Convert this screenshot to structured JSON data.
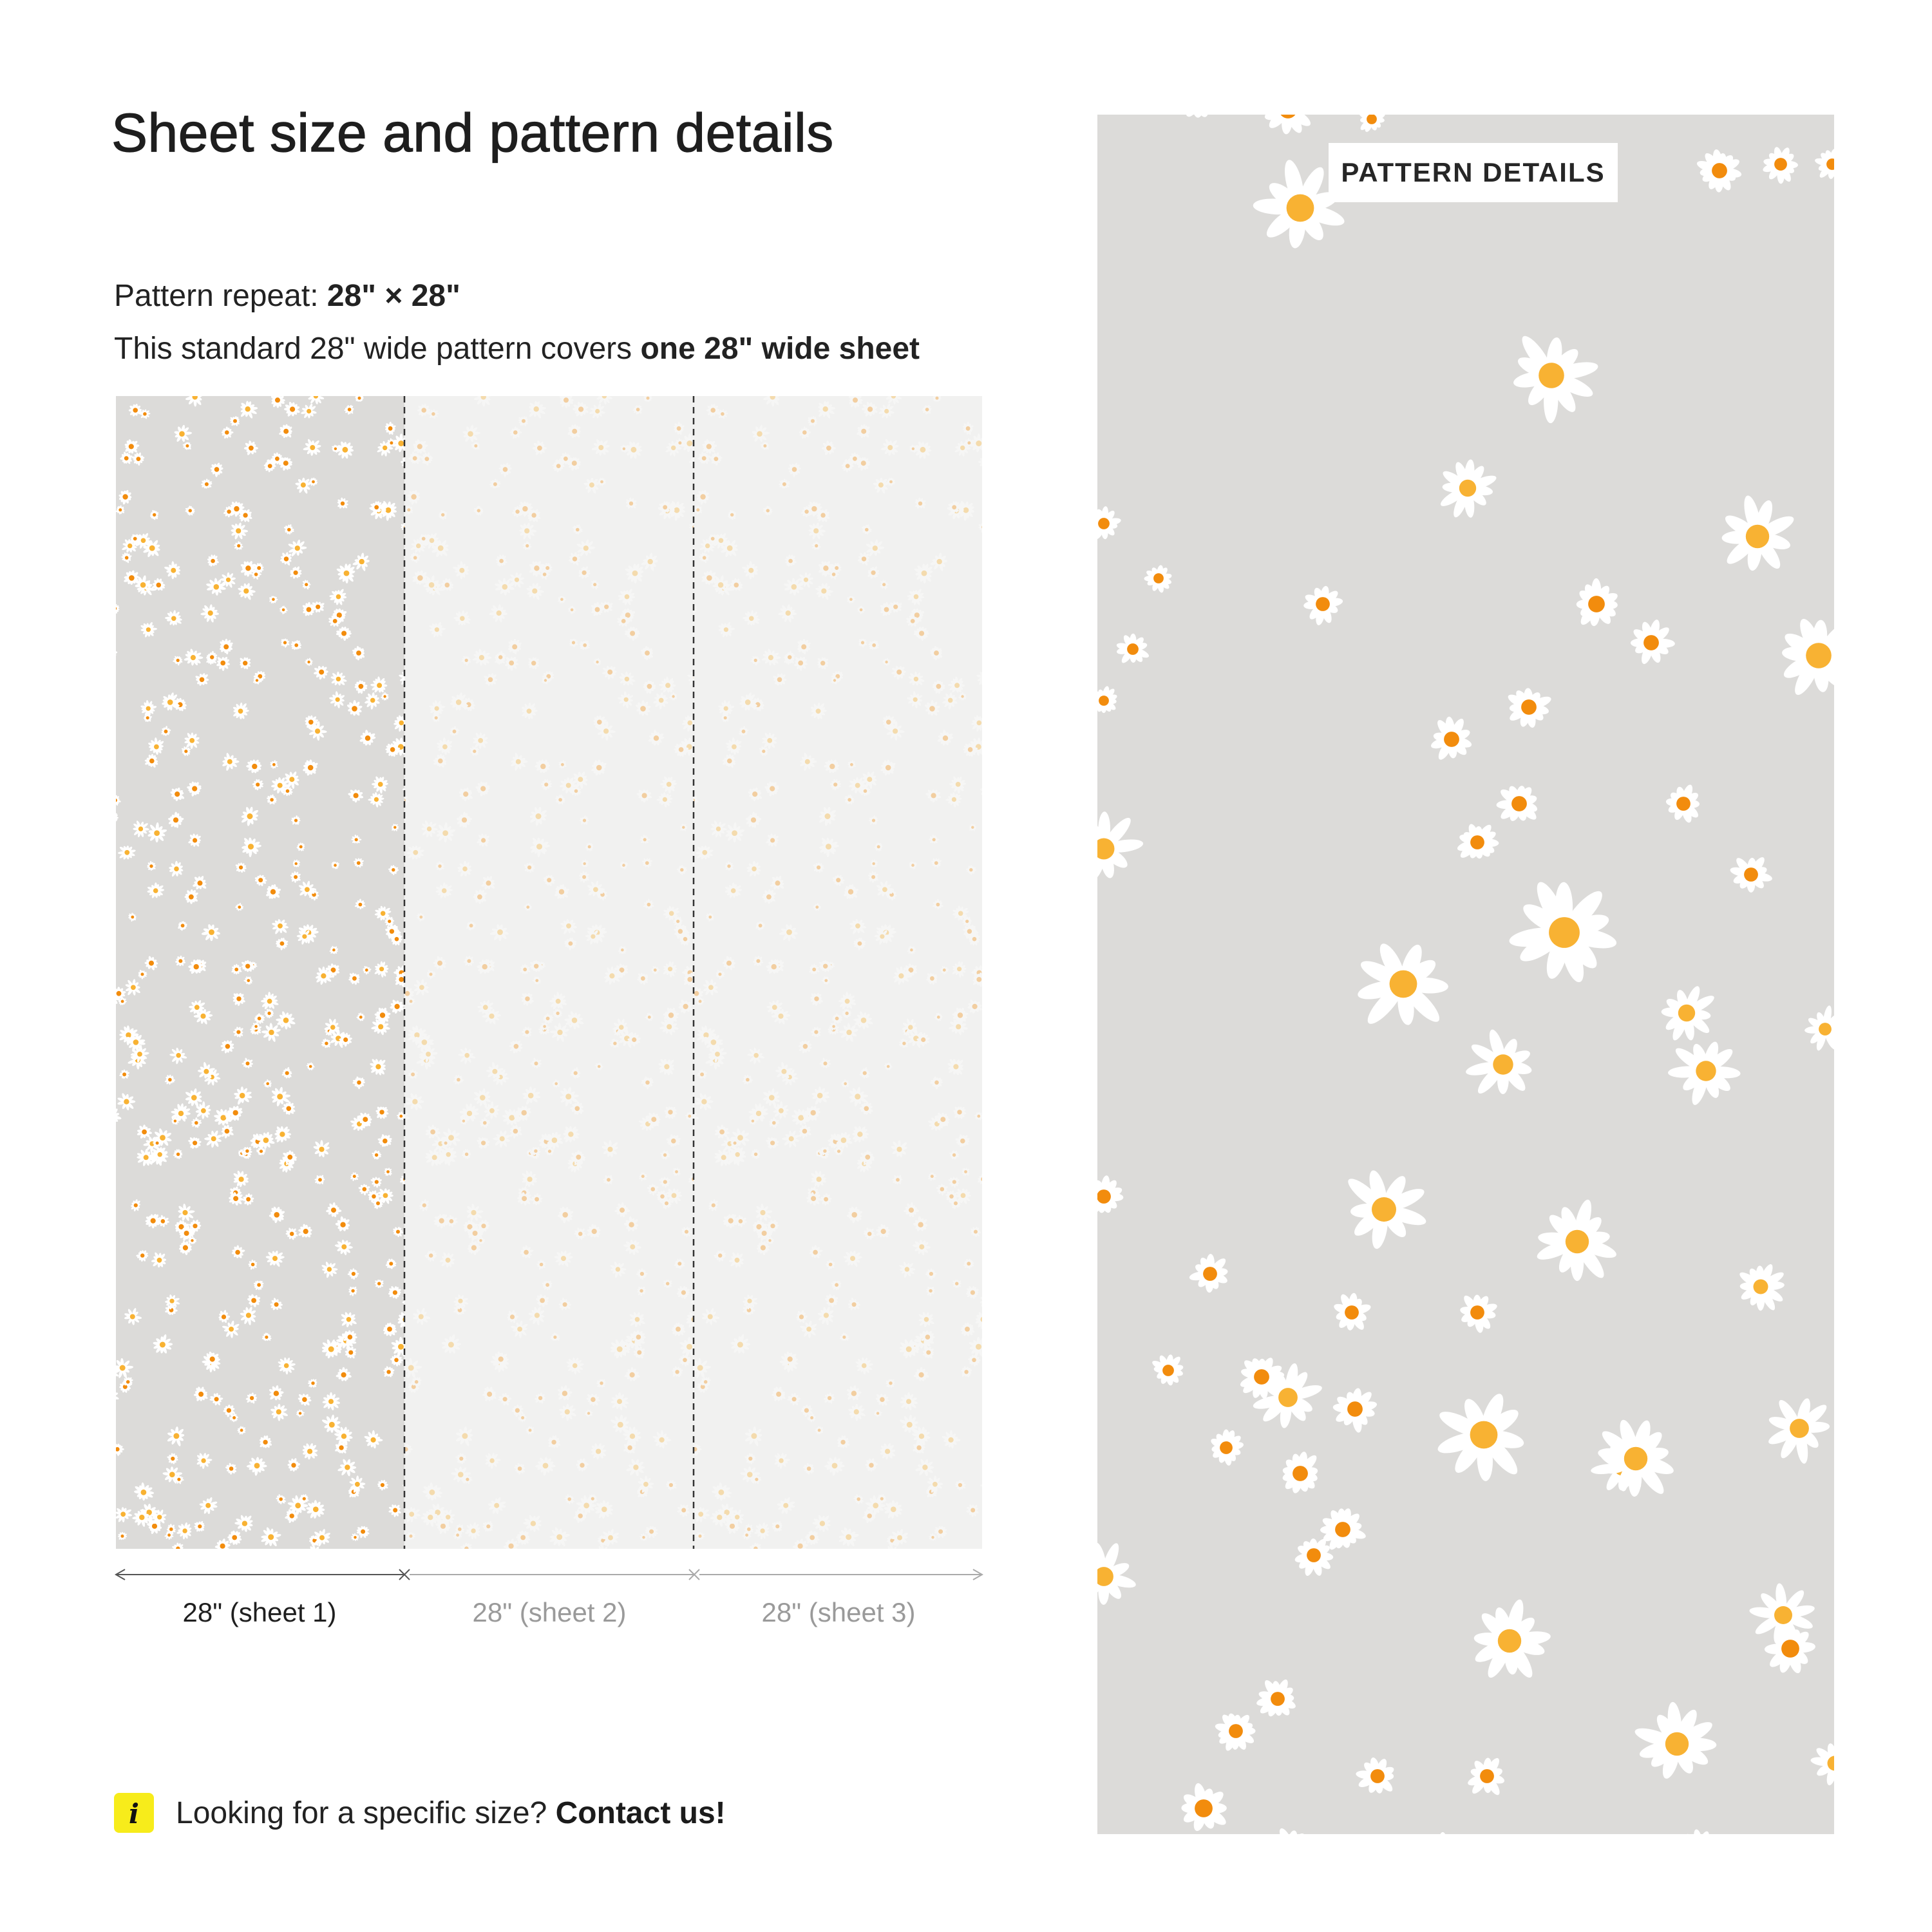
{
  "title": "Sheet size and pattern details",
  "pattern_repeat": {
    "label": "Pattern repeat: ",
    "value": "28\" × 28\""
  },
  "coverage": {
    "text": "This standard 28\" wide pattern covers ",
    "emphasis": "one 28\" wide sheet"
  },
  "sheets": [
    {
      "label": "28\" (sheet 1)",
      "active": true
    },
    {
      "label": "28\" (sheet 2)",
      "active": false
    },
    {
      "label": "28\" (sheet 3)",
      "active": false
    }
  ],
  "info": {
    "icon": "info-icon",
    "icon_glyph": "i",
    "text": "Looking for a specific size? ",
    "link": "Contact us!"
  },
  "pattern_details": {
    "badge": "PATTERN DETAILS"
  },
  "colors": {
    "pattern_bg": "#dcdbd9",
    "petal": "#ffffff",
    "center_orange": "#f28c0d",
    "center_yellow": "#f8b233",
    "accent_info": "#f7ec1b"
  }
}
